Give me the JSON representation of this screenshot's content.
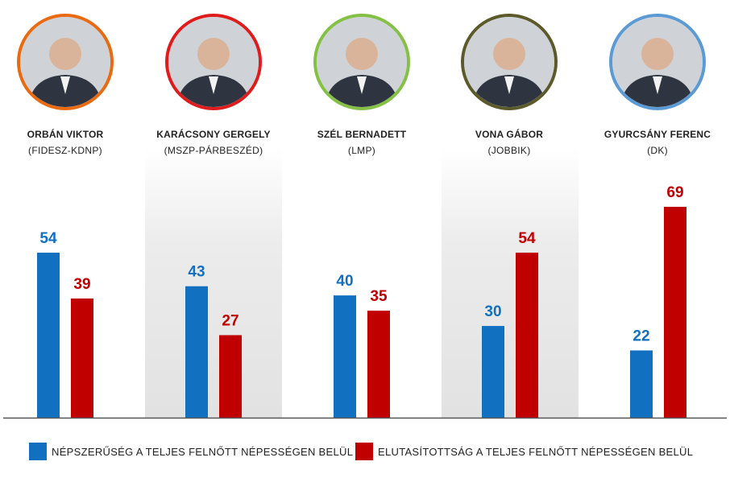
{
  "chart_data": {
    "type": "bar",
    "categories": [
      "ORBÁN VIKTOR",
      "KARÁCSONY GERGELY",
      "SZÉL BERNADETT",
      "VONA GÁBOR",
      "GYURCSÁNY FERENC"
    ],
    "parties": [
      "(FIDESZ-KDNP)",
      "(MSZP-PÁRBESZÉD)",
      "(LMP)",
      "(JOBBIK)",
      "(DK)"
    ],
    "series": [
      {
        "name": "NÉPSZERŰSÉG A TELJES FELNŐTT NÉPESSÉGEN BELÜL",
        "values": [
          54,
          43,
          40,
          30,
          22
        ],
        "color": "#1170c0"
      },
      {
        "name": "ELUTASÍTOTTSÁG A TELJES FELNŐTT NÉPESSÉGEN BELÜL",
        "values": [
          39,
          27,
          35,
          54,
          69
        ],
        "color": "#c00000"
      }
    ],
    "ylim": [
      0,
      69
    ],
    "grid": false,
    "legend": "bottom"
  },
  "portrait_ring_colors": [
    "#ea6a12",
    "#e01b1b",
    "#84c044",
    "#5c5a2a",
    "#5b9bd5"
  ],
  "portrait_icons": [
    "person-photo-icon",
    "person-photo-icon",
    "person-photo-icon",
    "person-photo-icon",
    "person-photo-icon"
  ],
  "band_color": "#ececec",
  "axis_color": "#555555"
}
